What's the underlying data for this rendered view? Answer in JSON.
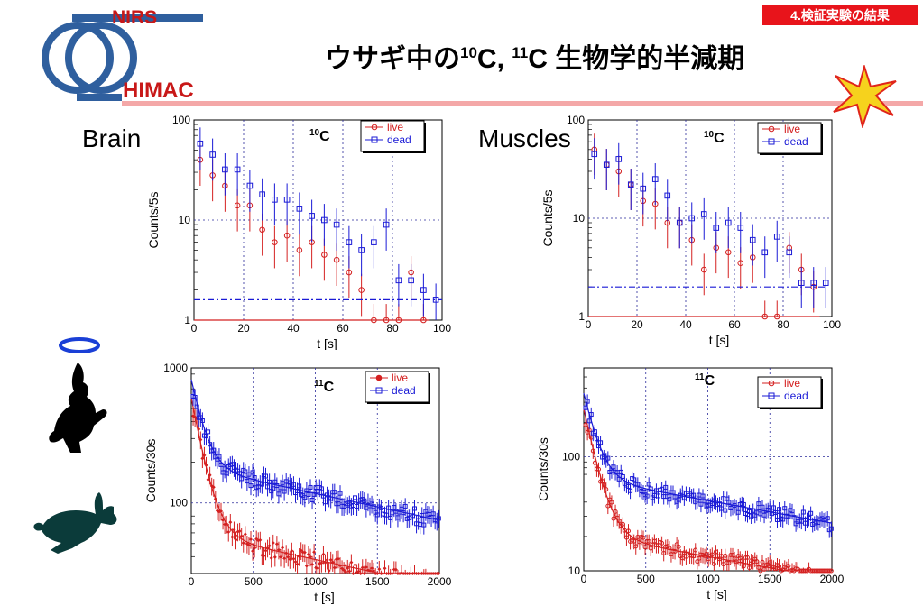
{
  "header": {
    "badge": "4.検証実験の結果",
    "title_pre": "ウサギ中の",
    "title_iso1": "10",
    "title_mid": "C, ",
    "title_iso2": "11",
    "title_post": "C 生物学的半減期",
    "logo_top": "NIRS",
    "logo_bottom": "HIMAC"
  },
  "labels": {
    "brain": "Brain",
    "muscles": "Muscles"
  },
  "colors": {
    "live": "#d42020",
    "dead": "#1a1ad6",
    "badge": "#e8141b",
    "logo": "#2f5f9e",
    "rabbit": "#000000",
    "rabbit_alive": "#0b3b3a",
    "halo": "#1a3fd6"
  },
  "icons": [
    "halo-icon",
    "dead-rabbit-icon",
    "live-rabbit-icon",
    "star-icon",
    "logo-rings-icon"
  ],
  "chart_data": [
    {
      "id": "brain-c10",
      "type": "scatter",
      "isotope_sup": "10",
      "isotope": "C",
      "xlabel": "t [s]",
      "ylabel": "Counts/5s",
      "xlim": [
        0,
        100
      ],
      "ylim": [
        1,
        100
      ],
      "yscale": "log",
      "xticks": [
        0,
        20,
        40,
        60,
        80,
        100
      ],
      "yticks": [
        1,
        10,
        100
      ],
      "grid": true,
      "legend": "top-right",
      "series": [
        {
          "name": "live",
          "marker": "circle",
          "x": [
            2.5,
            7.5,
            12.5,
            17.5,
            22.5,
            27.5,
            32.5,
            37.5,
            42.5,
            47.5,
            52.5,
            57.5,
            62.5,
            67.5,
            72.5,
            77.5,
            82.5,
            87.5,
            92.5
          ],
          "y": [
            40,
            28,
            22,
            14,
            14,
            8,
            6,
            7,
            5,
            6,
            4.5,
            4,
            3,
            2,
            1,
            1,
            1,
            3,
            1
          ],
          "fit": [
            45,
            0.85,
            95,
            1
          ]
        },
        {
          "name": "dead",
          "marker": "square",
          "x": [
            2.5,
            7.5,
            12.5,
            17.5,
            22.5,
            27.5,
            32.5,
            37.5,
            42.5,
            47.5,
            52.5,
            57.5,
            62.5,
            67.5,
            72.5,
            77.5,
            82.5,
            87.5,
            92.5,
            97.5
          ],
          "y": [
            58,
            45,
            32,
            32,
            22,
            18,
            16,
            16,
            13,
            11,
            10,
            9,
            6,
            5,
            6,
            9,
            2.5,
            2.5,
            2,
            1.6
          ],
          "fit": [
            52,
            1.6,
            100,
            1.6
          ]
        }
      ]
    },
    {
      "id": "muscle-c10",
      "type": "scatter",
      "isotope_sup": "10",
      "isotope": "C",
      "xlabel": "t [s]",
      "ylabel": "Counts/5s",
      "xlim": [
        0,
        100
      ],
      "ylim": [
        1,
        100
      ],
      "yscale": "log",
      "xticks": [
        0,
        20,
        40,
        60,
        80,
        100
      ],
      "yticks": [
        1,
        10,
        100
      ],
      "grid": true,
      "legend": "top-right",
      "series": [
        {
          "name": "live",
          "marker": "circle",
          "x": [
            2.5,
            7.5,
            12.5,
            17.5,
            22.5,
            27.5,
            32.5,
            37.5,
            42.5,
            47.5,
            52.5,
            57.5,
            62.5,
            67.5,
            72.5,
            77.5,
            82.5,
            87.5,
            92.5
          ],
          "y": [
            50,
            35,
            30,
            22,
            15,
            14,
            9,
            9,
            6,
            3,
            5,
            4.5,
            3.5,
            4,
            1,
            1,
            5,
            3,
            2
          ],
          "fit": [
            42,
            0.85,
            95,
            1
          ]
        },
        {
          "name": "dead",
          "marker": "square",
          "x": [
            2.5,
            7.5,
            12.5,
            17.5,
            22.5,
            27.5,
            32.5,
            37.5,
            42.5,
            47.5,
            52.5,
            57.5,
            62.5,
            67.5,
            72.5,
            77.5,
            82.5,
            87.5,
            92.5,
            97.5
          ],
          "y": [
            45,
            35,
            40,
            22,
            20,
            25,
            17,
            9,
            10,
            11,
            8,
            9,
            8,
            6,
            4.5,
            6.5,
            4.5,
            2.2,
            2.2,
            2.2
          ],
          "fit": [
            42,
            2,
            98,
            2
          ]
        }
      ]
    },
    {
      "id": "brain-c11",
      "type": "scatter",
      "isotope_sup": "11",
      "isotope": "C",
      "xlabel": "t [s]",
      "ylabel": "Counts/30s",
      "xlim": [
        0,
        2000
      ],
      "ylim": [
        30,
        1000
      ],
      "yscale": "log",
      "xticks": [
        0,
        500,
        1000,
        1500,
        2000
      ],
      "yticks": [
        100,
        1000
      ],
      "grid": true,
      "legend": "top-right",
      "series": [
        {
          "name": "live",
          "marker": "diamond",
          "decay": [
            600,
            8,
            60,
            2000
          ],
          "fit": true
        },
        {
          "name": "dead",
          "marker": "square",
          "decay": [
            820,
            8,
            185,
            2000
          ],
          "fit": true
        }
      ]
    },
    {
      "id": "muscle-c11",
      "type": "scatter",
      "isotope_sup": "11",
      "isotope": "C",
      "xlabel": "t [s]",
      "ylabel": "Counts/30s",
      "xlim": [
        0,
        2000
      ],
      "ylim": [
        10,
        600
      ],
      "yscale": "log",
      "xticks": [
        0,
        500,
        1000,
        1500,
        2000
      ],
      "yticks": [
        10,
        100
      ],
      "grid": true,
      "legend": "top-right",
      "series": [
        {
          "name": "live",
          "marker": "circle",
          "decay": [
            260,
            8,
            21,
            2000
          ],
          "fit": true
        },
        {
          "name": "dead",
          "marker": "square",
          "decay": [
            360,
            8,
            65,
            2000
          ],
          "fit": true
        }
      ]
    }
  ]
}
